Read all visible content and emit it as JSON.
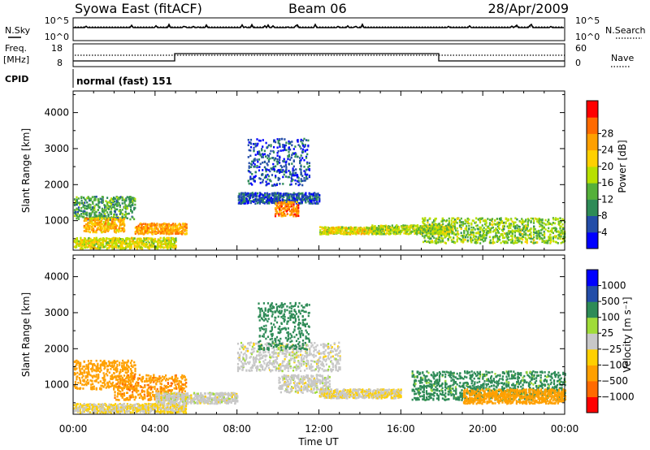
{
  "header": {
    "station": "Syowa East (fitACF)",
    "beam": "Beam 06",
    "date": "28/Apr/2009"
  },
  "top_panels": {
    "nsky_label": "N.Sky",
    "nsearch_label": "N.Search",
    "count_ticks": [
      "10^5",
      "10^0"
    ],
    "freq_label": "Freq.",
    "freq_unit": "[MHz]",
    "freq_ticks": [
      "18",
      "8"
    ],
    "nave_label": "Nave",
    "nave_ticks": [
      "60",
      "0"
    ],
    "cpid_label": "CPID",
    "cpid_value": "normal (fast) 151"
  },
  "colors": {
    "power": [
      "#0000ff",
      "#234da8",
      "#2e8b57",
      "#55b03a",
      "#b8e000",
      "#ffd000",
      "#ffa000",
      "#ff6a00",
      "#ff0000"
    ],
    "velocity": [
      "#ff0000",
      "#ff6a00",
      "#ffa000",
      "#ffd000",
      "#c8c8c8",
      "#a0dc38",
      "#2e8b57",
      "#234da8",
      "#0000ff"
    ]
  },
  "chart_data": [
    {
      "type": "heatmap",
      "name": "power",
      "xlabel": "Time UT",
      "ylabel": "Slant Range [km]",
      "xlim": [
        0,
        24
      ],
      "ylim": [
        180,
        4600
      ],
      "x_ticks": [
        "00:00",
        "04:00",
        "08:00",
        "12:00",
        "16:00",
        "20:00",
        "00:00"
      ],
      "y_ticks": [
        1000,
        2000,
        3000,
        4000
      ],
      "colorbar": {
        "label": "Power [dB]",
        "ticks": [
          4,
          8,
          12,
          16,
          20,
          24,
          28
        ]
      },
      "regions": [
        {
          "t": [
            0.0,
            5.0
          ],
          "r": [
            250,
            550
          ],
          "value": 20
        },
        {
          "t": [
            0.0,
            3.0
          ],
          "r": [
            1050,
            1700
          ],
          "value": 12
        },
        {
          "t": [
            0.5,
            2.5
          ],
          "r": [
            700,
            1100
          ],
          "value": 24
        },
        {
          "t": [
            3.0,
            5.5
          ],
          "r": [
            650,
            950
          ],
          "value": 26
        },
        {
          "t": [
            8.0,
            12.0
          ],
          "r": [
            1500,
            1800
          ],
          "value": 6
        },
        {
          "t": [
            9.8,
            11.0
          ],
          "r": [
            1150,
            1550
          ],
          "value": 28
        },
        {
          "t": [
            12.0,
            15.0
          ],
          "r": [
            650,
            850
          ],
          "value": 20
        },
        {
          "t": [
            14.5,
            18.5
          ],
          "r": [
            650,
            900
          ],
          "value": 18
        },
        {
          "t": [
            17.0,
            24.0
          ],
          "r": [
            400,
            1100
          ],
          "value": 16
        },
        {
          "t": [
            8.5,
            11.5
          ],
          "r": [
            2000,
            3300
          ],
          "value": 6
        }
      ]
    },
    {
      "type": "heatmap",
      "name": "velocity",
      "xlabel": "Time UT",
      "ylabel": "Slant Range [km]",
      "xlim": [
        0,
        24
      ],
      "ylim": [
        180,
        4600
      ],
      "x_ticks": [
        "00:00",
        "04:00",
        "08:00",
        "12:00",
        "16:00",
        "20:00",
        "00:00"
      ],
      "y_ticks": [
        1000,
        2000,
        3000,
        4000
      ],
      "colorbar": {
        "label": "Velocity [m s⁻¹]",
        "ticks": [
          "1000",
          "500",
          "100",
          "25",
          "−25",
          "−100",
          "−500",
          "−1000"
        ]
      },
      "regions": [
        {
          "t": [
            0.0,
            5.5
          ],
          "r": [
            250,
            500
          ],
          "value": -25
        },
        {
          "t": [
            0.0,
            3.0
          ],
          "r": [
            900,
            1700
          ],
          "value": -300
        },
        {
          "t": [
            2.0,
            5.5
          ],
          "r": [
            600,
            1300
          ],
          "value": -400
        },
        {
          "t": [
            4.0,
            8.0
          ],
          "r": [
            500,
            800
          ],
          "value": 0
        },
        {
          "t": [
            8.0,
            13.0
          ],
          "r": [
            1400,
            2200
          ],
          "value": 0
        },
        {
          "t": [
            10.0,
            12.5
          ],
          "r": [
            800,
            1300
          ],
          "value": 0
        },
        {
          "t": [
            12.0,
            16.0
          ],
          "r": [
            650,
            900
          ],
          "value": -20
        },
        {
          "t": [
            16.5,
            24.0
          ],
          "r": [
            600,
            1400
          ],
          "value": 150
        },
        {
          "t": [
            19.0,
            24.0
          ],
          "r": [
            500,
            900
          ],
          "value": -300
        },
        {
          "t": [
            9.0,
            11.5
          ],
          "r": [
            2000,
            3300
          ],
          "value": 300
        }
      ]
    }
  ]
}
